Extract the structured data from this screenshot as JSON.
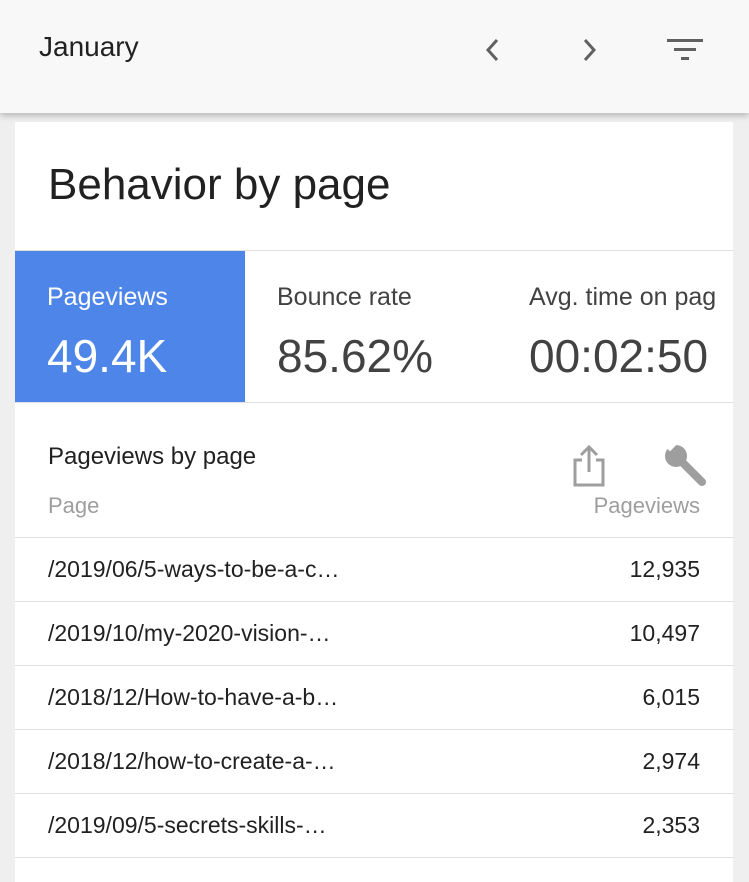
{
  "header": {
    "month": "January",
    "icons": [
      "chevron-left-icon",
      "chevron-right-icon",
      "filter-icon"
    ]
  },
  "card": {
    "title": "Behavior by page",
    "metrics": [
      {
        "label": "Pageviews",
        "value": "49.4K",
        "selected": true
      },
      {
        "label": "Bounce rate",
        "value": "85.62%",
        "selected": false
      },
      {
        "label": "Avg. time on pag",
        "value": "00:02:50",
        "selected": false
      }
    ],
    "section_title": "Pageviews by page",
    "columns": {
      "page": "Page",
      "pageviews": "Pageviews"
    },
    "icons": [
      "share-icon",
      "wrench-icon"
    ],
    "rows": [
      {
        "page": "/2019/06/5-ways-to-be-a-c…",
        "pageviews": "12,935"
      },
      {
        "page": "/2019/10/my-2020-vision-…",
        "pageviews": "10,497"
      },
      {
        "page": "/2018/12/How-to-have-a-b…",
        "pageviews": "6,015"
      },
      {
        "page": "/2018/12/how-to-create-a-…",
        "pageviews": "2,974"
      },
      {
        "page": "/2019/09/5-secrets-skills-…",
        "pageviews": "2,353"
      }
    ]
  },
  "colors": {
    "accent": "#4d86e8",
    "background": "#efefef",
    "header_bg": "#f8f8f8"
  }
}
